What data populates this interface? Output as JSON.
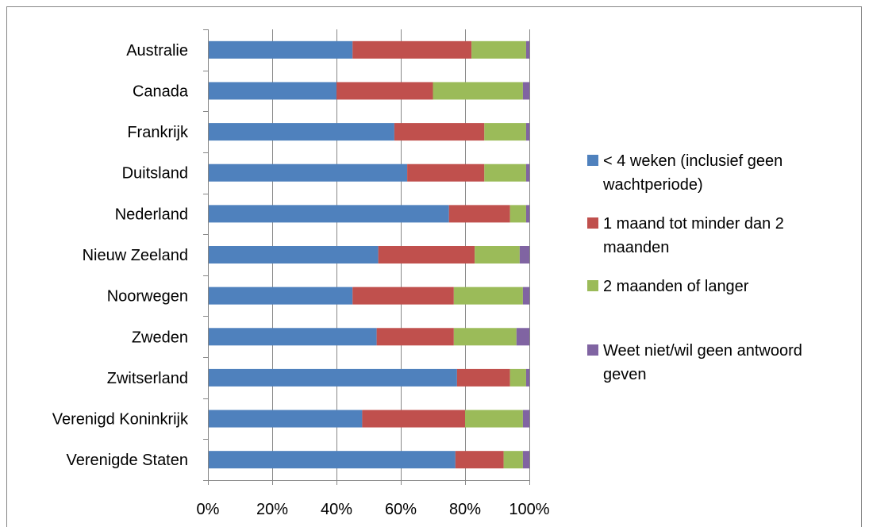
{
  "chart_data": {
    "type": "bar",
    "orientation": "horizontal",
    "stacked": true,
    "categories": [
      "Australie",
      "Canada",
      "Frankrijk",
      "Duitsland",
      "Nederland",
      "Nieuw Zeeland",
      "Noorwegen",
      "Zweden",
      "Zwitserland",
      "Verenigd Koninkrijk",
      "Verenigde Staten"
    ],
    "series": [
      {
        "name": "< 4 weken (inclusief geen wachtperiode)",
        "color": "#4F81BD",
        "values": [
          45,
          40,
          58,
          62,
          75,
          53,
          45,
          52.5,
          77.5,
          48,
          77
        ]
      },
      {
        "name": "1 maand tot minder dan 2 maanden",
        "color": "#C0504D",
        "values": [
          37,
          30,
          28,
          24,
          19,
          30,
          31.5,
          24,
          16.5,
          32,
          15
        ]
      },
      {
        "name": "2 maanden of langer",
        "color": "#9BBB59",
        "values": [
          17,
          28,
          13,
          13,
          5,
          14,
          21.5,
          19.5,
          5,
          18,
          6
        ]
      },
      {
        "name": "Weet niet/wil geen antwoord geven",
        "color": "#8064A2",
        "values": [
          1,
          2,
          1,
          1,
          1,
          3,
          2,
          4,
          1,
          2,
          2
        ]
      }
    ],
    "xlim": [
      0,
      100
    ],
    "x_ticks": [
      "0%",
      "20%",
      "40%",
      "60%",
      "80%",
      "100%"
    ],
    "grid": "vertical",
    "legend_position": "right",
    "title": "",
    "xlabel": "",
    "ylabel": ""
  },
  "colors": {
    "gridline": "#868686",
    "axis": "#868686",
    "frame": "#868686"
  }
}
